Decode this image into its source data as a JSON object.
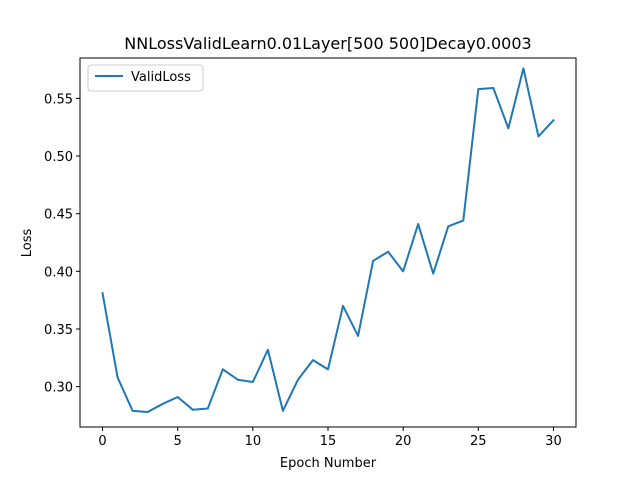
{
  "chart_data": {
    "type": "line",
    "title": "NNLossValidLearn0.01Layer[500 500]Decay0.0003",
    "xlabel": "Epoch Number",
    "ylabel": "Loss",
    "xlim": [
      -1.5,
      31.5
    ],
    "ylim": [
      0.265,
      0.585
    ],
    "xticks": [
      0,
      5,
      10,
      15,
      20,
      25,
      30
    ],
    "xtick_labels": [
      "0",
      "5",
      "10",
      "15",
      "20",
      "25",
      "30"
    ],
    "yticks": [
      0.3,
      0.35,
      0.4,
      0.45,
      0.5,
      0.55
    ],
    "ytick_labels": [
      "0.30",
      "0.35",
      "0.40",
      "0.45",
      "0.50",
      "0.55"
    ],
    "grid": false,
    "legend_position": "upper-left",
    "series": [
      {
        "name": "ValidLoss",
        "color": "#1f77b4",
        "x": [
          0,
          1,
          2,
          3,
          4,
          5,
          6,
          7,
          8,
          9,
          10,
          11,
          12,
          13,
          14,
          15,
          16,
          17,
          18,
          19,
          20,
          21,
          22,
          23,
          24,
          25,
          26,
          27,
          28,
          29,
          30
        ],
        "y": [
          0.381,
          0.308,
          0.279,
          0.278,
          0.285,
          0.291,
          0.28,
          0.281,
          0.315,
          0.306,
          0.304,
          0.332,
          0.279,
          0.306,
          0.323,
          0.315,
          0.37,
          0.344,
          0.409,
          0.417,
          0.4,
          0.441,
          0.398,
          0.439,
          0.444,
          0.558,
          0.559,
          0.524,
          0.576,
          0.517,
          0.531
        ]
      }
    ]
  }
}
